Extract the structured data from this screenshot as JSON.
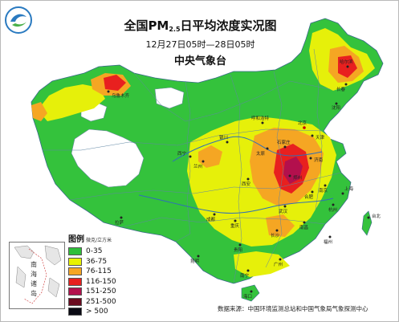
{
  "header": {
    "title_prefix": "全国PM",
    "title_sub": "2.5",
    "title_suffix": "日平均浓度实况图",
    "time_range": "12月27日05时—28日05时",
    "agency": "中央气象台"
  },
  "legend": {
    "title": "图例",
    "unit": "微克/立方米",
    "items": [
      {
        "label": "0-35",
        "color": "#2fbf3a"
      },
      {
        "label": "36-75",
        "color": "#e8f200"
      },
      {
        "label": "76-115",
        "color": "#f5a623"
      },
      {
        "label": "116-150",
        "color": "#e8201f"
      },
      {
        "label": "151-250",
        "color": "#b3104d"
      },
      {
        "label": "251-500",
        "color": "#6a0a1f"
      },
      {
        "label": "> 500",
        "color": "#0a0a14"
      }
    ]
  },
  "inset": {
    "label_1": "南",
    "label_2": "海",
    "label_3": "诸",
    "label_4": "岛"
  },
  "cities": {
    "urumqi": "乌鲁木齐",
    "harbin": "哈尔滨",
    "changchun": "长春",
    "shenyang": "沈阳",
    "beijing": "北京",
    "tianjin": "天津",
    "shijiazhuang": "石家庄",
    "taiyuan": "太原",
    "jinan": "济南",
    "zhengzhou": "郑州",
    "xian": "西安",
    "lanzhou": "兰州",
    "xining": "西宁",
    "yinchuan": "银川",
    "hohhot": "呼和浩特",
    "chengdu": "成都",
    "chongqing": "重庆",
    "wuhan": "武汉",
    "nanjing": "南京",
    "hefei": "合肥",
    "hangzhou": "杭州",
    "shanghai": "上海",
    "changsha": "长沙",
    "nanchang": "南昌",
    "fuzhou": "福州",
    "guiyang": "贵阳",
    "kunming": "昆明",
    "nanning": "南宁",
    "guangzhou": "广州",
    "haikou": "海口",
    "lhasa": "拉萨",
    "taipei": "台北"
  },
  "credit": "数据来源：中国环境监测总站和中国气象局气象探测中心"
}
